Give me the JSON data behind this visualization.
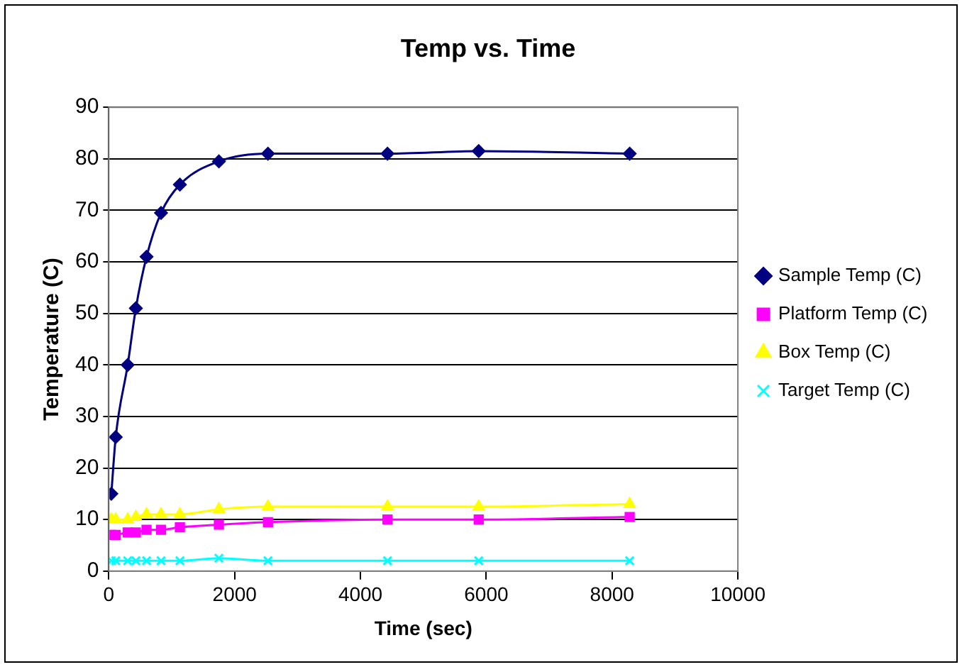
{
  "chart_data": {
    "type": "line",
    "title": "Temp vs. Time",
    "xlabel": "Time (sec)",
    "ylabel": "Temperature (C)",
    "x": [
      40,
      110,
      300,
      430,
      600,
      830,
      1130,
      1750,
      2530,
      4430,
      5880,
      8280
    ],
    "series": [
      {
        "name": "Sample Temp (C)",
        "color": "#000080",
        "marker": "diamond",
        "values": [
          15,
          26,
          40,
          51,
          61,
          69.5,
          75,
          79.5,
          81,
          81,
          81.5,
          81
        ]
      },
      {
        "name": "Platform Temp (C)",
        "color": "#ff00ff",
        "marker": "square",
        "values": [
          7,
          7,
          7.5,
          7.5,
          8,
          8,
          8.5,
          9,
          9.5,
          10,
          10,
          10.5
        ]
      },
      {
        "name": "Box Temp (C)",
        "color": "#ffff00",
        "marker": "triangle",
        "values": [
          10,
          10,
          10,
          10.5,
          11,
          11,
          11,
          12,
          12.5,
          12.5,
          12.5,
          13
        ]
      },
      {
        "name": "Target Temp (C)",
        "color": "#00ffff",
        "marker": "cross",
        "values": [
          2,
          2,
          2,
          2,
          2,
          2,
          2,
          2.5,
          2,
          2,
          2,
          2
        ]
      }
    ],
    "xlim": [
      0,
      10000
    ],
    "xticks": [
      0,
      2000,
      4000,
      6000,
      8000,
      10000
    ],
    "ylim": [
      0,
      90
    ],
    "yticks": [
      0,
      10,
      20,
      30,
      40,
      50,
      60,
      70,
      80,
      90
    ],
    "grid": "y",
    "legend": "right"
  }
}
